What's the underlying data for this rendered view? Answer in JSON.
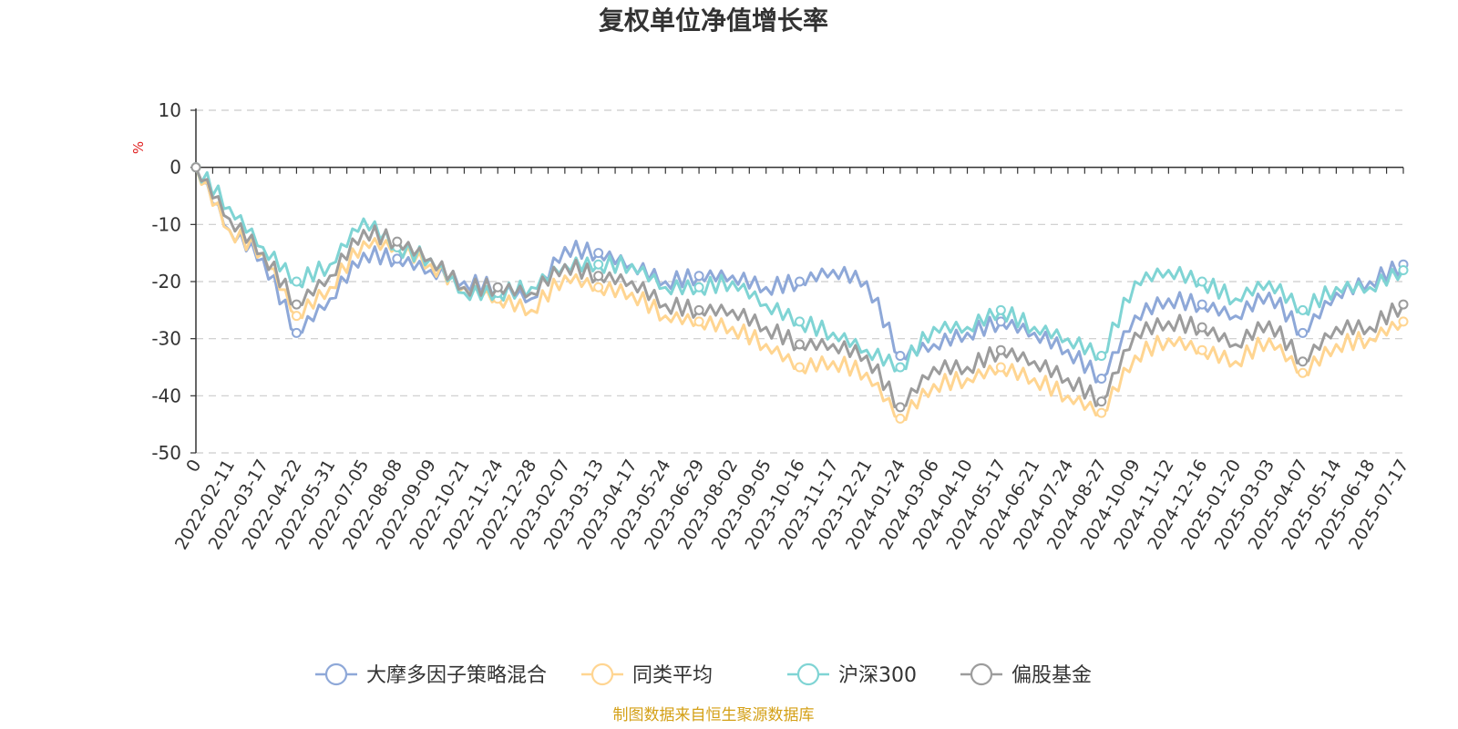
{
  "chart_data": {
    "type": "line",
    "title": "复权单位净值增长率",
    "y_unit": "%",
    "ylim": [
      -50,
      10
    ],
    "y_ticks": [
      10,
      0,
      -10,
      -20,
      -30,
      -40,
      -50
    ],
    "grid": true,
    "legend_position": "bottom",
    "x_ticks": [
      "0",
      "2022-02-11",
      "2022-03-17",
      "2022-04-22",
      "2022-05-31",
      "2022-07-05",
      "2022-08-08",
      "2022-09-09",
      "2022-10-21",
      "2022-11-24",
      "2022-12-28",
      "2023-02-07",
      "2023-03-13",
      "2023-04-17",
      "2023-05-24",
      "2023-06-29",
      "2023-08-02",
      "2023-09-05",
      "2023-10-16",
      "2023-11-17",
      "2023-12-21",
      "2024-01-24",
      "2024-03-06",
      "2024-04-10",
      "2024-05-17",
      "2024-06-21",
      "2024-07-24",
      "2024-08-27",
      "2024-10-09",
      "2024-11-12",
      "2024-12-16",
      "2025-01-20",
      "2025-03-03",
      "2025-04-07",
      "2025-05-14",
      "2025-06-18",
      "2025-07-17"
    ],
    "series": [
      {
        "name": "大摩多因子策略混合",
        "color": "#8ea8d8",
        "values": [
          0,
          -11,
          -16,
          -29,
          -23,
          -15,
          -16,
          -18,
          -20,
          -21,
          -23,
          -14,
          -15,
          -17,
          -20,
          -19,
          -19,
          -21,
          -20,
          -18,
          -20,
          -33,
          -31,
          -29,
          -27,
          -29,
          -32,
          -37,
          -26,
          -23,
          -24,
          -26,
          -22,
          -29,
          -22,
          -20,
          -17
        ]
      },
      {
        "name": "同类平均",
        "color": "#ffd591",
        "values": [
          0,
          -11,
          -15,
          -26,
          -21,
          -13,
          -14,
          -17,
          -21,
          -23,
          -25,
          -19,
          -21,
          -22,
          -26,
          -27,
          -28,
          -31,
          -35,
          -34,
          -36,
          -44,
          -38,
          -37,
          -35,
          -37,
          -40,
          -43,
          -33,
          -30,
          -32,
          -34,
          -30,
          -36,
          -31,
          -30,
          -27
        ]
      },
      {
        "name": "沪深300",
        "color": "#7fd4d4",
        "values": [
          0,
          -7,
          -14,
          -20,
          -17,
          -9,
          -14,
          -16,
          -22,
          -22,
          -21,
          -17,
          -17,
          -17,
          -21,
          -21,
          -20,
          -24,
          -27,
          -29,
          -32,
          -35,
          -28,
          -28,
          -25,
          -28,
          -30,
          -33,
          -20,
          -18,
          -20,
          -23,
          -20,
          -25,
          -21,
          -21,
          -18
        ]
      },
      {
        "name": "偏股基金",
        "color": "#9c9c9c",
        "values": [
          0,
          -9,
          -15,
          -24,
          -19,
          -11,
          -13,
          -16,
          -21,
          -21,
          -22,
          -17,
          -19,
          -20,
          -24,
          -25,
          -25,
          -28,
          -31,
          -31,
          -33,
          -42,
          -35,
          -35,
          -32,
          -34,
          -37,
          -41,
          -29,
          -27,
          -28,
          -31,
          -27,
          -34,
          -28,
          -28,
          -24
        ]
      }
    ]
  },
  "source_text": "制图数据来自恒生聚源数据库"
}
